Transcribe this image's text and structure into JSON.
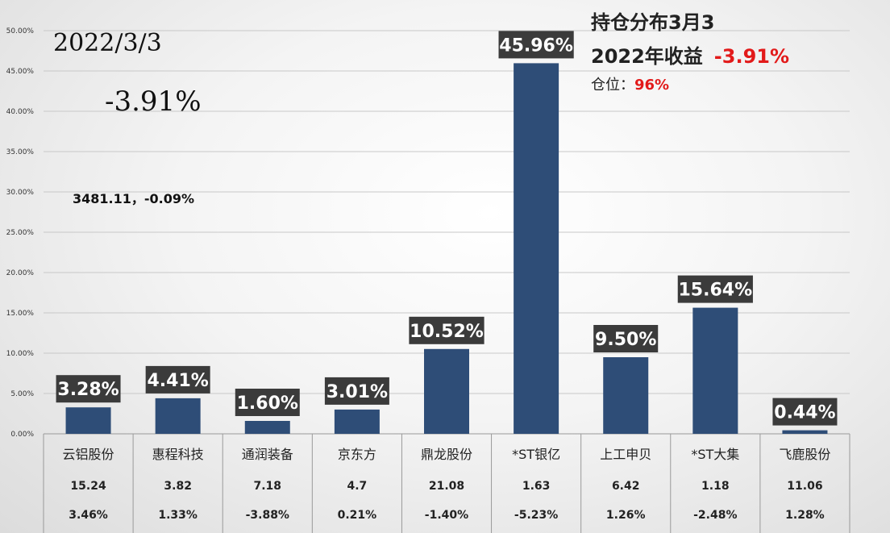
{
  "header": {
    "date": "2022/3/3",
    "daily_return": "-3.91%",
    "index_info": "3481.11，-0.09%",
    "holdings_title": "持仓分布3月3",
    "year_label": "2022年收益",
    "year_value": "-3.91%",
    "position_label": "仓位：",
    "position_value": "96%"
  },
  "colors": {
    "bar": "#2e4d77",
    "label_bg": "#3b3b3b",
    "label_text": "#ffffff",
    "highlight_red": "#e21a1a"
  },
  "chart_data": {
    "type": "bar",
    "categories": [
      "云铝股份",
      "惠程科技",
      "通润装备",
      "京东方",
      "鼎龙股份",
      "*ST银亿",
      "上工申贝",
      "*ST大集",
      "飞鹿股份"
    ],
    "values": [
      3.28,
      4.41,
      1.6,
      3.01,
      10.52,
      45.96,
      9.5,
      15.64,
      0.44
    ],
    "value_labels": [
      "3.28%",
      "4.41%",
      "1.60%",
      "3.01%",
      "10.52%",
      "45.96%",
      "9.50%",
      "15.64%",
      "0.44%"
    ],
    "prices": [
      "15.24",
      "3.82",
      "7.18",
      "4.7",
      "21.08",
      "1.63",
      "6.42",
      "1.18",
      "11.06"
    ],
    "daily_changes": [
      "3.46%",
      "1.33%",
      "-3.88%",
      "0.21%",
      "-1.40%",
      "-5.23%",
      "1.26%",
      "-2.48%",
      "1.28%"
    ],
    "ylim": [
      0,
      50
    ],
    "yticks": [
      "0.00%",
      "5.00%",
      "10.00%",
      "15.00%",
      "20.00%",
      "25.00%",
      "30.00%",
      "35.00%",
      "40.00%",
      "45.00%",
      "50.00%"
    ],
    "grid": true,
    "legend": "none"
  }
}
